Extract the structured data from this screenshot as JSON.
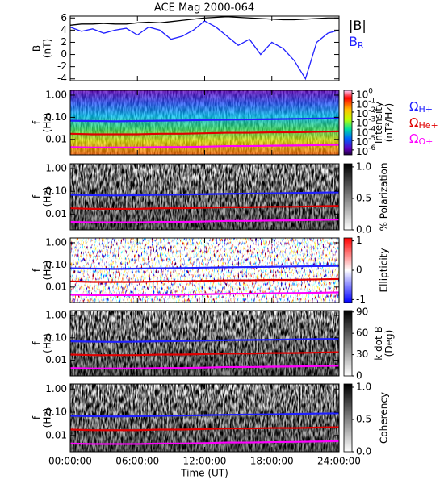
{
  "chart_data": [
    {
      "type": "line",
      "title": "ACE Mag 2000-064",
      "ylabel": [
        "B",
        "(nT)"
      ],
      "x": [
        0,
        1,
        2,
        3,
        4,
        5,
        6,
        7,
        8,
        9,
        10,
        11,
        12,
        13,
        14,
        15,
        16,
        17,
        18,
        19,
        20,
        21,
        22,
        23,
        24
      ],
      "series": [
        {
          "name": "|B|",
          "color": "#000000",
          "values": [
            4.8,
            5.0,
            5.0,
            5.1,
            5.0,
            5.0,
            5.2,
            5.3,
            5.2,
            5.4,
            5.6,
            5.8,
            6.0,
            6.1,
            6.2,
            6.1,
            6.0,
            5.9,
            5.8,
            5.7,
            5.7,
            5.8,
            5.9,
            6.0,
            6.0
          ]
        },
        {
          "name": "B",
          "subscript": "R",
          "color": "#2020ff",
          "values": [
            4.5,
            3.8,
            4.2,
            3.5,
            4.0,
            4.3,
            3.2,
            4.5,
            4.0,
            2.5,
            3.0,
            4.0,
            5.5,
            4.5,
            3.0,
            1.5,
            2.5,
            0.0,
            2.0,
            1.0,
            -1.0,
            -4.0,
            2.0,
            3.5,
            4.0
          ]
        }
      ],
      "xlim": [
        0,
        24
      ],
      "xticks": [
        0,
        6,
        12,
        18,
        24
      ],
      "ylim": [
        -4.3,
        6.3
      ],
      "yticks": [
        -4,
        -2,
        0,
        2,
        4,
        6
      ]
    },
    {
      "type": "spectrogram",
      "ylabel": [
        "f",
        "(Hz)"
      ],
      "log_y": true,
      "colormap": "rainbow",
      "x": [
        0,
        2,
        4,
        6,
        8,
        10,
        12,
        14,
        16,
        18,
        20,
        22,
        24
      ],
      "series": [
        {
          "name": "Ω",
          "subscript": "H+",
          "color": "#2020ff",
          "values": [
            0.07,
            0.068,
            0.066,
            0.068,
            0.07,
            0.072,
            0.075,
            0.078,
            0.08,
            0.082,
            0.085,
            0.088,
            0.09
          ]
        },
        {
          "name": "Ω",
          "subscript": "He+",
          "color": "#e00000",
          "values": [
            0.018,
            0.017,
            0.017,
            0.017,
            0.018,
            0.018,
            0.019,
            0.02,
            0.02,
            0.021,
            0.021,
            0.022,
            0.023
          ]
        },
        {
          "name": "Ω",
          "subscript": "O+",
          "color": "#ff00ff",
          "values": [
            0.0045,
            0.0043,
            0.0043,
            0.0043,
            0.0045,
            0.0045,
            0.0047,
            0.005,
            0.005,
            0.0052,
            0.0053,
            0.0055,
            0.0057
          ]
        }
      ],
      "xlim": [
        0,
        24
      ],
      "xticks": [
        0,
        6,
        12,
        18,
        24
      ],
      "ylim": [
        0.002,
        1.65
      ],
      "yticks": [
        {
          "value": 1,
          "label": "1.00"
        },
        {
          "value": 0.1,
          "label": "0.10"
        },
        {
          "value": 0.01,
          "label": "0.01"
        }
      ],
      "colorbar": {
        "label": [
          "Intensity",
          "(nT²/Hz)"
        ],
        "log": true,
        "lim": [
          3e-07,
          2
        ],
        "ticks": [
          {
            "value": 1,
            "label": "10",
            "exponent": "0"
          },
          {
            "value": 0.1,
            "label": "10",
            "exponent": "-1"
          },
          {
            "value": 0.01,
            "label": "10",
            "exponent": "-2"
          },
          {
            "value": 0.001,
            "label": "10",
            "exponent": "-3"
          },
          {
            "value": 0.0001,
            "label": "10",
            "exponent": "-4"
          },
          {
            "value": 1e-05,
            "label": "10",
            "exponent": "-5"
          },
          {
            "value": 1e-06,
            "label": "10",
            "exponent": "-6"
          }
        ]
      }
    },
    {
      "type": "spectrogram",
      "ylabel": [
        "f",
        "(Hz)"
      ],
      "log_y": true,
      "colormap": "gray",
      "xlim": [
        0,
        24
      ],
      "xticks": [
        0,
        6,
        12,
        18,
        24
      ],
      "ylim": [
        0.002,
        1.65
      ],
      "yticks": [
        {
          "value": 1,
          "label": "1.00"
        },
        {
          "value": 0.1,
          "label": "0.10"
        },
        {
          "value": 0.01,
          "label": "0.01"
        }
      ],
      "colorbar": {
        "label": [
          "% Polarization"
        ],
        "lim": [
          0,
          1.05
        ],
        "ticks": [
          {
            "value": 0,
            "label": "0.0"
          },
          0.5,
          {
            "value": 1,
            "label": "1.0"
          }
        ]
      }
    },
    {
      "type": "spectrogram",
      "ylabel": [
        "f",
        "(Hz)"
      ],
      "log_y": true,
      "colormap": "bwr",
      "xlim": [
        0,
        24
      ],
      "xticks": [
        0,
        6,
        12,
        18,
        24
      ],
      "ylim": [
        0.002,
        1.65
      ],
      "yticks": [
        {
          "value": 1,
          "label": "1.00"
        },
        {
          "value": 0.1,
          "label": "0.10"
        },
        {
          "value": 0.01,
          "label": "0.01"
        }
      ],
      "colorbar": {
        "label": [
          "Ellipticity"
        ],
        "lim": [
          -1.1,
          1.1
        ],
        "ticks": [
          -1,
          0,
          1
        ]
      }
    },
    {
      "type": "spectrogram",
      "ylabel": [
        "f",
        "(Hz)"
      ],
      "log_y": true,
      "colormap": "gray",
      "xlim": [
        0,
        24
      ],
      "xticks": [
        0,
        6,
        12,
        18,
        24
      ],
      "ylim": [
        0.002,
        1.65
      ],
      "yticks": [
        {
          "value": 1,
          "label": "1.00"
        },
        {
          "value": 0.1,
          "label": "0.10"
        },
        {
          "value": 0.01,
          "label": "0.01"
        }
      ],
      "colorbar": {
        "label": [
          "k dot B",
          "(Deg)"
        ],
        "lim": [
          0,
          92
        ],
        "ticks": [
          0,
          30,
          60,
          90
        ]
      }
    },
    {
      "type": "spectrogram",
      "ylabel": [
        "f",
        "(Hz)"
      ],
      "log_y": true,
      "colormap": "gray",
      "xlabel": "Time (UT)",
      "xlim": [
        0,
        24
      ],
      "xticks": [
        {
          "value": 0,
          "label": "00:00:00"
        },
        {
          "value": 6,
          "label": "06:00:00"
        },
        {
          "value": 12,
          "label": "12:00:00"
        },
        {
          "value": 18,
          "label": "18:00:00"
        },
        {
          "value": 24,
          "label": "24:00:00"
        }
      ],
      "ylim": [
        0.002,
        1.65
      ],
      "yticks": [
        {
          "value": 1,
          "label": "1.00"
        },
        {
          "value": 0.1,
          "label": "0.10"
        },
        {
          "value": 0.01,
          "label": "0.01"
        }
      ],
      "colorbar": {
        "label": [
          "Coherency"
        ],
        "lim": [
          0,
          1.05
        ],
        "ticks": [
          {
            "value": 0,
            "label": "0.0"
          },
          0.5,
          {
            "value": 1,
            "label": "1.0"
          }
        ]
      }
    }
  ]
}
